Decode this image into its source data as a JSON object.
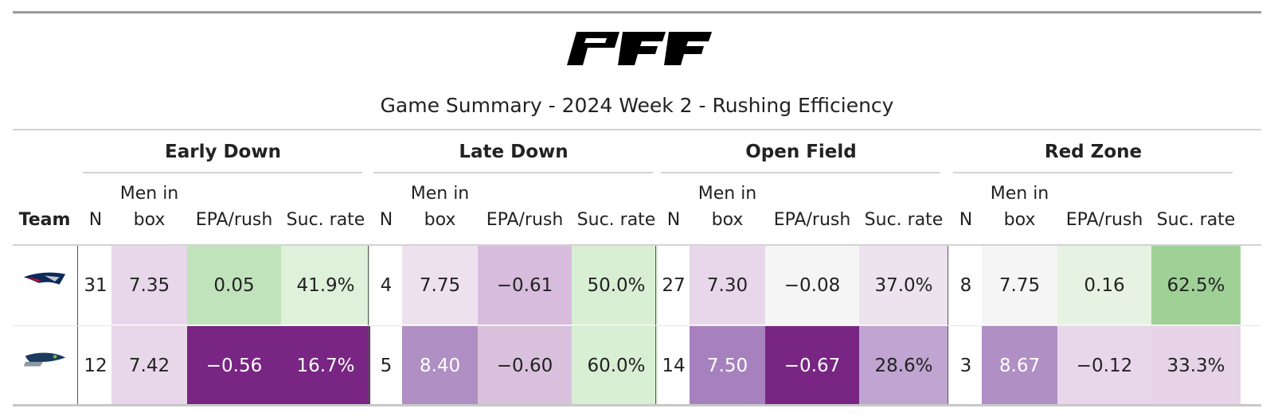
{
  "title": "Game Summary - 2024 Week 2 - Rushing Efficiency",
  "logo": {
    "text": "PFF",
    "icon": "pff-logo"
  },
  "header": {
    "team": "Team",
    "groups": [
      "Early Down",
      "Late Down",
      "Open Field",
      "Red Zone"
    ],
    "subcols": {
      "n": "N",
      "men_line1": "Men in",
      "men_line2": "box",
      "epa": "EPA/rush",
      "suc": "Suc. rate"
    }
  },
  "rows": [
    {
      "team_icon": "patriots-logo-icon",
      "cells": [
        {
          "v": "31",
          "bg": "#ffffff",
          "fg": "#222222"
        },
        {
          "v": "7.35",
          "bg": "#e8d7ea",
          "fg": "#222222"
        },
        {
          "v": "0.05",
          "bg": "#c1e3bb",
          "fg": "#222222"
        },
        {
          "v": "41.9%",
          "bg": "#dff1da",
          "fg": "#222222"
        },
        {
          "v": "4",
          "bg": "#ffffff",
          "fg": "#222222"
        },
        {
          "v": "7.75",
          "bg": "#ede1ee",
          "fg": "#222222"
        },
        {
          "v": "−0.61",
          "bg": "#d7bcdd",
          "fg": "#222222"
        },
        {
          "v": "50.0%",
          "bg": "#d9efd4",
          "fg": "#222222"
        },
        {
          "v": "27",
          "bg": "#ffffff",
          "fg": "#222222"
        },
        {
          "v": "7.30",
          "bg": "#e8d7ea",
          "fg": "#222222"
        },
        {
          "v": "−0.08",
          "bg": "#f5f5f5",
          "fg": "#222222"
        },
        {
          "v": "37.0%",
          "bg": "#ece3ee",
          "fg": "#222222"
        },
        {
          "v": "8",
          "bg": "#ffffff",
          "fg": "#222222"
        },
        {
          "v": "7.75",
          "bg": "#f5f5f5",
          "fg": "#222222"
        },
        {
          "v": "0.16",
          "bg": "#e6f3e2",
          "fg": "#222222"
        },
        {
          "v": "62.5%",
          "bg": "#9fd197",
          "fg": "#222222"
        }
      ]
    },
    {
      "team_icon": "seahawks-logo-icon",
      "cells": [
        {
          "v": "12",
          "bg": "#ffffff",
          "fg": "#222222"
        },
        {
          "v": "7.42",
          "bg": "#e8d7ea",
          "fg": "#222222"
        },
        {
          "v": "−0.56",
          "bg": "#782583",
          "fg": "#ffffff"
        },
        {
          "v": "16.7%",
          "bg": "#782583",
          "fg": "#ffffff"
        },
        {
          "v": "5",
          "bg": "#ffffff",
          "fg": "#222222"
        },
        {
          "v": "8.40",
          "bg": "#b08fc4",
          "fg": "#ffffff"
        },
        {
          "v": "−0.60",
          "bg": "#d9c1de",
          "fg": "#222222"
        },
        {
          "v": "60.0%",
          "bg": "#d9efd4",
          "fg": "#222222"
        },
        {
          "v": "14",
          "bg": "#ffffff",
          "fg": "#222222"
        },
        {
          "v": "7.50",
          "bg": "#a781bd",
          "fg": "#ffffff"
        },
        {
          "v": "−0.67",
          "bg": "#782583",
          "fg": "#ffffff"
        },
        {
          "v": "28.6%",
          "bg": "#c0a4d1",
          "fg": "#222222"
        },
        {
          "v": "3",
          "bg": "#ffffff",
          "fg": "#222222"
        },
        {
          "v": "8.67",
          "bg": "#b08fc4",
          "fg": "#ffffff"
        },
        {
          "v": "−0.12",
          "bg": "#e8d7ea",
          "fg": "#222222"
        },
        {
          "v": "33.3%",
          "bg": "#e6d3e8",
          "fg": "#222222"
        }
      ]
    }
  ]
}
